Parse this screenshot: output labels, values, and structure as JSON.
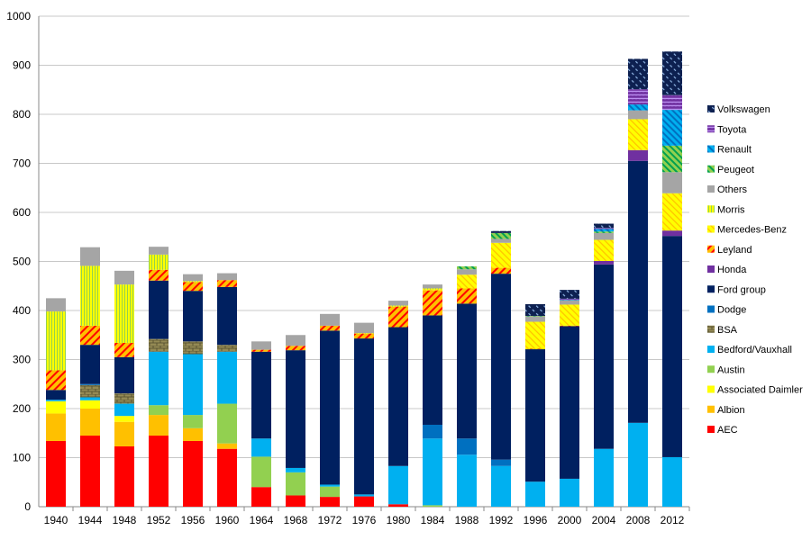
{
  "chart_data": {
    "type": "bar",
    "stacked": true,
    "title": "",
    "xlabel": "",
    "ylabel": "",
    "ylim": [
      0,
      1000
    ],
    "yticks": [
      0,
      100,
      200,
      300,
      400,
      500,
      600,
      700,
      800,
      900,
      1000
    ],
    "grid": true,
    "legend_position": "right",
    "categories": [
      "1940",
      "1944",
      "1948",
      "1952",
      "1956",
      "1960",
      "1964",
      "1968",
      "1972",
      "1976",
      "1980",
      "1984",
      "1988",
      "1992",
      "1996",
      "2000",
      "2004",
      "2008",
      "2012"
    ],
    "series": [
      {
        "name": "AEC",
        "color": "#ff0000",
        "pattern": "solid",
        "values": [
          134,
          145,
          123,
          145,
          134,
          118,
          40,
          23,
          20,
          21,
          5,
          0,
          0,
          0,
          0,
          0,
          0,
          0,
          0
        ]
      },
      {
        "name": "Albion",
        "color": "#ffc000",
        "pattern": "solid",
        "values": [
          56,
          55,
          50,
          42,
          26,
          11,
          0,
          0,
          0,
          0,
          0,
          0,
          0,
          0,
          0,
          0,
          0,
          0,
          0
        ]
      },
      {
        "name": "Associated Daimler",
        "color": "#ffff00",
        "pattern": "solid",
        "values": [
          25,
          17,
          12,
          0,
          0,
          0,
          0,
          0,
          0,
          0,
          0,
          0,
          0,
          0,
          0,
          0,
          0,
          0,
          0
        ]
      },
      {
        "name": "Austin",
        "color": "#92d050",
        "pattern": "solid",
        "values": [
          0,
          0,
          0,
          20,
          27,
          81,
          62,
          47,
          21,
          0,
          0,
          3,
          0,
          0,
          0,
          0,
          0,
          0,
          0
        ]
      },
      {
        "name": "Bedford/Vauxhall",
        "color": "#00b0f0",
        "pattern": "solid",
        "values": [
          3,
          6,
          25,
          109,
          124,
          106,
          37,
          9,
          4,
          4,
          78,
          136,
          106,
          83,
          51,
          57,
          118,
          171,
          101
        ]
      },
      {
        "name": "BSA",
        "color": "#948a54",
        "pattern": "brick",
        "values": [
          0,
          25,
          21,
          26,
          26,
          14,
          0,
          0,
          0,
          0,
          0,
          0,
          0,
          0,
          0,
          0,
          0,
          0,
          0
        ]
      },
      {
        "name": "Dodge",
        "color": "#0070c0",
        "pattern": "solid",
        "values": [
          0,
          2,
          0,
          0,
          0,
          0,
          0,
          0,
          0,
          0,
          0,
          28,
          33,
          13,
          0,
          0,
          0,
          0,
          0
        ]
      },
      {
        "name": "Ford group",
        "color": "#002060",
        "pattern": "solid",
        "values": [
          20,
          80,
          74,
          119,
          103,
          118,
          177,
          240,
          314,
          318,
          283,
          223,
          275,
          379,
          270,
          311,
          376,
          534,
          451
        ]
      },
      {
        "name": "Honda",
        "color": "#7030a0",
        "pattern": "solid",
        "values": [
          0,
          0,
          0,
          0,
          0,
          0,
          0,
          0,
          0,
          0,
          0,
          0,
          0,
          0,
          0,
          0,
          7,
          22,
          11
        ]
      },
      {
        "name": "Leyland",
        "color": "#ff0000",
        "pattern": "hatch-orange",
        "values": [
          40,
          39,
          29,
          22,
          18,
          14,
          4,
          9,
          10,
          10,
          42,
          51,
          31,
          12,
          1,
          1,
          0,
          0,
          0
        ]
      },
      {
        "name": "Mercedes-Benz",
        "color": "#ffc000",
        "pattern": "hatch-yellow",
        "values": [
          0,
          0,
          0,
          0,
          0,
          0,
          0,
          0,
          0,
          0,
          0,
          2,
          28,
          51,
          55,
          43,
          43,
          63,
          76
        ]
      },
      {
        "name": "Morris",
        "color": "#92d050",
        "pattern": "vstripe",
        "values": [
          120,
          122,
          119,
          31,
          2,
          0,
          0,
          0,
          0,
          1,
          2,
          2,
          0,
          0,
          0,
          0,
          0,
          0,
          0
        ]
      },
      {
        "name": "Others",
        "color": "#a5a5a5",
        "pattern": "solid",
        "values": [
          27,
          38,
          28,
          16,
          14,
          14,
          17,
          22,
          24,
          21,
          10,
          8,
          11,
          8,
          11,
          9,
          14,
          18,
          43
        ]
      },
      {
        "name": "Peugeot",
        "color": "#00b050",
        "pattern": "hatch-green",
        "values": [
          0,
          0,
          0,
          0,
          0,
          0,
          0,
          0,
          0,
          0,
          0,
          0,
          6,
          12,
          1,
          0,
          3,
          0,
          54
        ]
      },
      {
        "name": "Renault",
        "color": "#0070c0",
        "pattern": "hatch-blue",
        "values": [
          0,
          0,
          0,
          0,
          0,
          0,
          0,
          0,
          0,
          0,
          0,
          0,
          0,
          0,
          0,
          1,
          5,
          12,
          73
        ]
      },
      {
        "name": "Toyota",
        "color": "#7030a0",
        "pattern": "wave-purple",
        "values": [
          0,
          0,
          0,
          0,
          0,
          0,
          0,
          0,
          0,
          0,
          0,
          0,
          0,
          0,
          0,
          2,
          2,
          31,
          30
        ]
      },
      {
        "name": "Volkswagen",
        "color": "#002060",
        "pattern": "dash-navy",
        "values": [
          0,
          0,
          0,
          0,
          0,
          0,
          0,
          0,
          0,
          0,
          0,
          0,
          0,
          4,
          24,
          18,
          9,
          62,
          89
        ]
      }
    ]
  }
}
